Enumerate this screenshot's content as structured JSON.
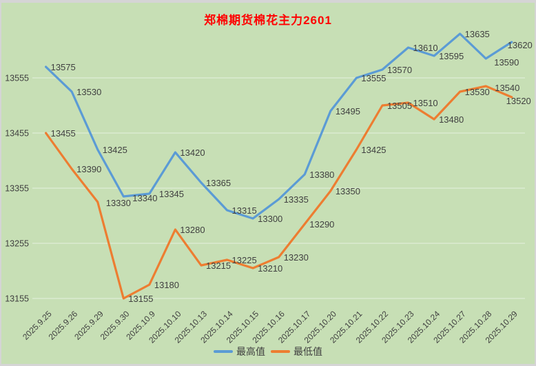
{
  "colors": {
    "background": "#c7dfb5",
    "frame": "#d5d5d5",
    "title": "#ff0000",
    "text": "#404040",
    "gridline": "#dcebd2",
    "highest_line": "#5b9bd5",
    "lowest_line": "#ed7d31"
  },
  "chart_data": {
    "type": "line",
    "title": "郑棉期货棉花主力2601",
    "categories": [
      "2025.9.25",
      "2025.9.26",
      "2025.9.29",
      "2025.9.30",
      "2025.10.9",
      "2025.10.10",
      "2025.10.13",
      "2025.10.14",
      "2025.10.15",
      "2025.10.16",
      "2025.10.17",
      "2025.10.20",
      "2025.10.21",
      "2025.10.22",
      "2025.10.23",
      "2025.10.24",
      "2025.10.27",
      "2025.10.28",
      "2025.10.29"
    ],
    "series": [
      {
        "name": "最高值",
        "color": "#5b9bd5",
        "values": [
          13575,
          13530,
          13425,
          13340,
          13345,
          13420,
          13365,
          13315,
          13300,
          13335,
          13380,
          13495,
          13555,
          13570,
          13610,
          13595,
          13635,
          13590,
          13620
        ]
      },
      {
        "name": "最低值",
        "color": "#ed7d31",
        "values": [
          13455,
          13390,
          13330,
          13155,
          13180,
          13280,
          13215,
          13225,
          13210,
          13230,
          13290,
          13350,
          13425,
          13505,
          13510,
          13480,
          13530,
          13540,
          13520
        ]
      }
    ],
    "ylim": [
      13155,
      13655
    ],
    "yticks": [
      13555,
      13455,
      13355,
      13255,
      13155
    ],
    "grid": true,
    "data_labels": true,
    "legend_position": "bottom"
  }
}
